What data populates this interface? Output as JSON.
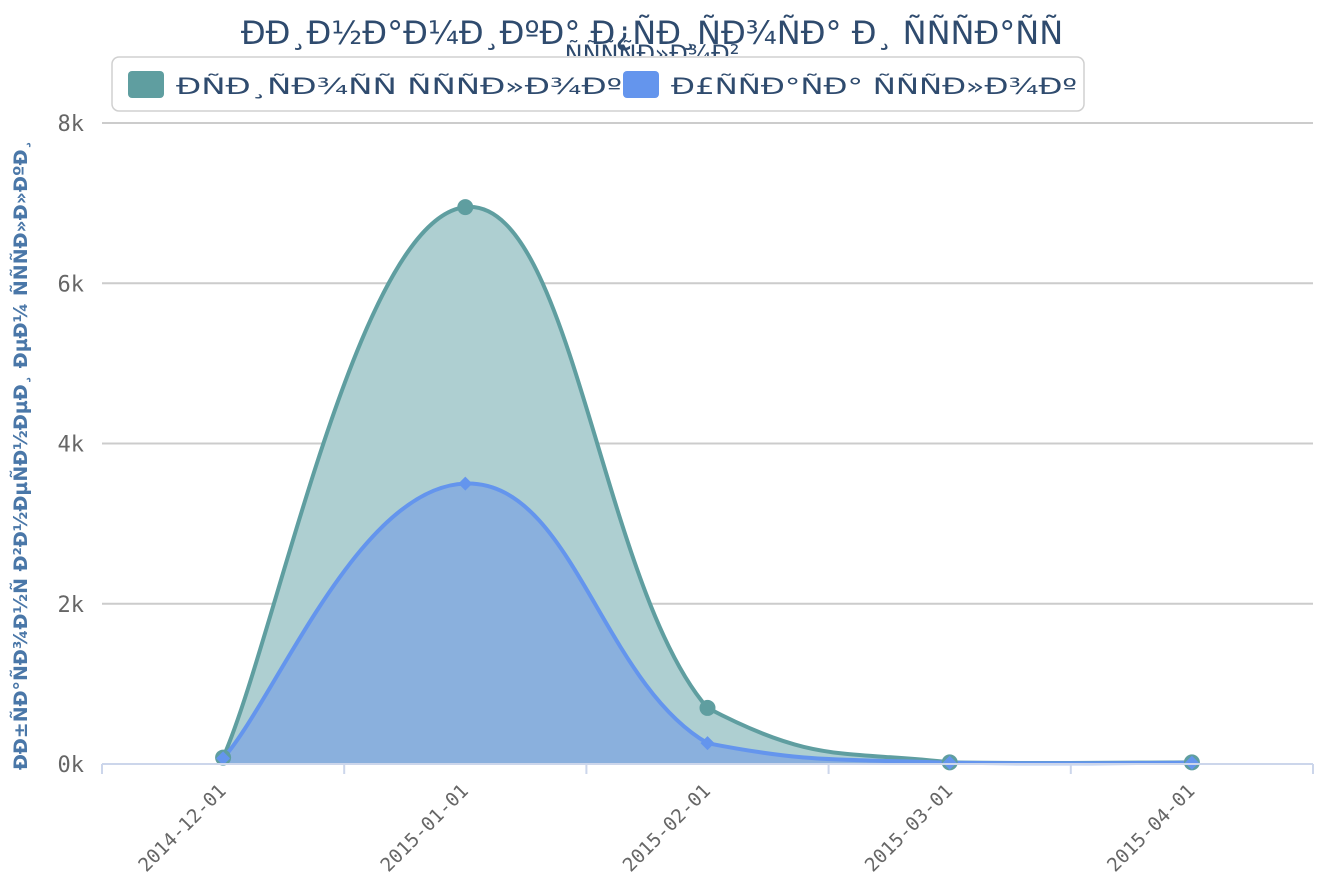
{
  "chart_data": {
    "type": "area",
    "title": "ÐÐ¸Ð½Ð°Ð¼Ð¸ÐºÐ° Ð¿ÑÐ¸ÑÐ¾ÑÐ° Ð¸ ÑÑÑÐ°ÑÑ",
    "title_line2": "ÑÑÑÑÐ»Ð¾Ð²",
    "ylabel": "ÐÐ±ÑÐ°ÑÐ¾Ð½Ñ Ð²Ð½ÐµÑÐ½ÐµÐ¸ ÐµÐ¼ ÑÑÑÐ»Ð»ÐºÐ¸",
    "xlabel": "",
    "x": [
      "2014-12-01",
      "2015-01-01",
      "2015-02-01",
      "2015-03-01",
      "2015-04-01"
    ],
    "ylim": [
      0,
      8000
    ],
    "yticks": [
      0,
      2000,
      4000,
      6000,
      8000
    ],
    "ytick_labels": [
      "0k",
      "2k",
      "4k",
      "6k",
      "8k"
    ],
    "grid": true,
    "legend_position": "top",
    "series": [
      {
        "name": "ÐÑÐ¸ÑÐ¾ÑÑ ÑÑÑÐ»Ð¾Ðº",
        "values": [
          80,
          6950,
          700,
          20,
          20
        ],
        "color": "#5f9ea0",
        "fill": "#aecfd1",
        "marker": "circle"
      },
      {
        "name": "Ð£ÑÑÐ°ÑÐ° ÑÑÑÐ»Ð¾Ðº",
        "values": [
          70,
          3500,
          260,
          15,
          15
        ],
        "color": "#6495ed",
        "fill": "#87aedd",
        "marker": "diamond"
      }
    ]
  }
}
